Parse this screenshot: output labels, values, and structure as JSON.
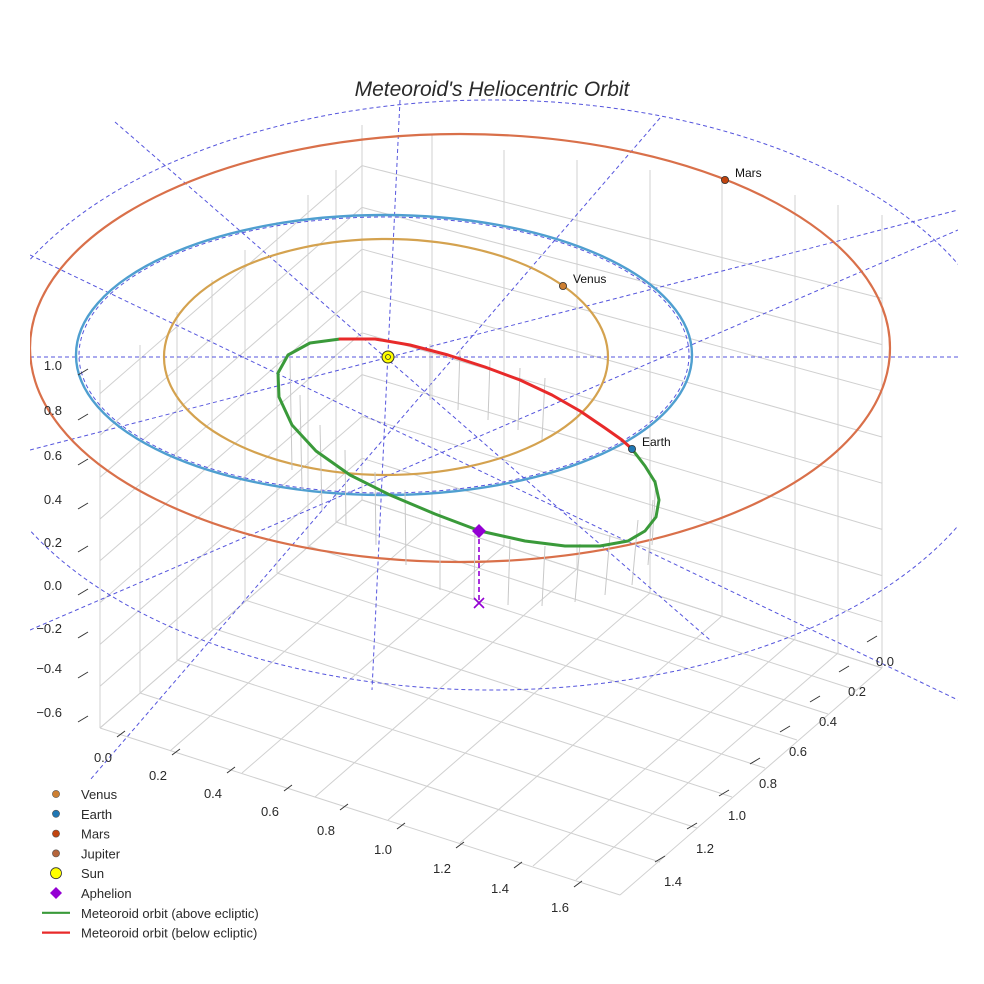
{
  "chart_data": {
    "type": "scatter3d",
    "title": "Meteoroid's Heliocentric Orbit",
    "colors": {
      "venus": "#cd7f32",
      "venus_orbit": "#d4a24f",
      "earth": "#1f77b4",
      "earth_orbit": "#4f9fd0",
      "mars": "#c1440e",
      "mars_orbit": "#d9704a",
      "jupiter": "#b5653b",
      "sun": "#ffff00",
      "aphelion": "#9400d3",
      "meteoroid_above": "#3a9a3a",
      "meteoroid_below": "#e82a2a",
      "ecliptic_grid": "#5555dd",
      "axis_grid": "#d0d0d0"
    },
    "x_axis": {
      "ticks": [
        "0.0",
        "0.2",
        "0.4",
        "0.6",
        "0.8",
        "1.0",
        "1.2",
        "1.4",
        "1.6"
      ]
    },
    "y_axis": {
      "ticks": [
        "0.0",
        "0.2",
        "0.4",
        "0.6",
        "0.8",
        "1.0",
        "1.2",
        "1.4"
      ]
    },
    "z_axis": {
      "ticks": [
        "1.0",
        "0.8",
        "0.6",
        "0.4",
        "0.2",
        "0.0",
        "−0.2",
        "−0.4",
        "−0.6"
      ]
    },
    "planets": [
      {
        "name": "Venus",
        "label": "Venus"
      },
      {
        "name": "Earth",
        "label": "Earth"
      },
      {
        "name": "Mars",
        "label": "Mars"
      }
    ],
    "legend": [
      {
        "label": "Venus",
        "marker": "circle",
        "color_key": "venus"
      },
      {
        "label": "Earth",
        "marker": "circle",
        "color_key": "earth"
      },
      {
        "label": "Mars",
        "marker": "circle",
        "color_key": "mars"
      },
      {
        "label": "Jupiter",
        "marker": "circle",
        "color_key": "jupiter"
      },
      {
        "label": "Sun",
        "marker": "circle-large",
        "color_key": "sun"
      },
      {
        "label": "Aphelion",
        "marker": "diamond",
        "color_key": "aphelion"
      },
      {
        "label": "Meteoroid orbit (above ecliptic)",
        "marker": "line",
        "color_key": "meteoroid_above"
      },
      {
        "label": "Meteoroid orbit (below ecliptic)",
        "marker": "line",
        "color_key": "meteoroid_below"
      }
    ]
  }
}
